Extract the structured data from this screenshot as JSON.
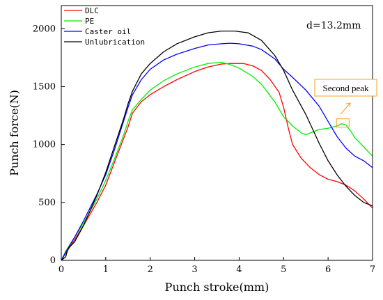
{
  "chart_data": {
    "type": "line",
    "xlabel": "Punch stroke(mm)",
    "ylabel": "Punch force(N)",
    "xlim": [
      0,
      7
    ],
    "ylim": [
      0,
      2200
    ],
    "xticks": [
      0,
      1,
      2,
      3,
      4,
      5,
      6,
      7
    ],
    "yticks": [
      0,
      500,
      1000,
      1500,
      2000
    ],
    "grid": false,
    "legend_position": "top-left",
    "annotation_diameter": "d=13.2mm",
    "annotation_peak": "Second peak",
    "series": [
      {
        "name": "DLC",
        "color": "#ff0000",
        "points": [
          [
            0,
            0
          ],
          [
            0.1,
            60
          ],
          [
            0.3,
            180
          ],
          [
            0.5,
            300
          ],
          [
            0.8,
            500
          ],
          [
            1.0,
            650
          ],
          [
            1.2,
            850
          ],
          [
            1.4,
            1050
          ],
          [
            1.5,
            1150
          ],
          [
            1.6,
            1270
          ],
          [
            1.7,
            1320
          ],
          [
            1.8,
            1370
          ],
          [
            2.0,
            1430
          ],
          [
            2.3,
            1500
          ],
          [
            2.6,
            1560
          ],
          [
            3.0,
            1630
          ],
          [
            3.3,
            1670
          ],
          [
            3.6,
            1695
          ],
          [
            3.8,
            1700
          ],
          [
            4.1,
            1700
          ],
          [
            4.3,
            1680
          ],
          [
            4.5,
            1640
          ],
          [
            4.7,
            1560
          ],
          [
            4.9,
            1450
          ],
          [
            5.0,
            1320
          ],
          [
            5.1,
            1150
          ],
          [
            5.2,
            1000
          ],
          [
            5.4,
            880
          ],
          [
            5.6,
            800
          ],
          [
            5.8,
            740
          ],
          [
            6.0,
            700
          ],
          [
            6.2,
            680
          ],
          [
            6.4,
            650
          ],
          [
            6.6,
            600
          ],
          [
            6.8,
            530
          ],
          [
            7.0,
            450
          ]
        ]
      },
      {
        "name": "PE",
        "color": "#00ee00",
        "points": [
          [
            0,
            0
          ],
          [
            0.1,
            80
          ],
          [
            0.3,
            200
          ],
          [
            0.5,
            320
          ],
          [
            0.8,
            530
          ],
          [
            1.0,
            690
          ],
          [
            1.2,
            880
          ],
          [
            1.4,
            1080
          ],
          [
            1.5,
            1200
          ],
          [
            1.6,
            1300
          ],
          [
            1.8,
            1390
          ],
          [
            2.0,
            1470
          ],
          [
            2.3,
            1550
          ],
          [
            2.6,
            1610
          ],
          [
            3.0,
            1670
          ],
          [
            3.3,
            1700
          ],
          [
            3.6,
            1710
          ],
          [
            3.8,
            1690
          ],
          [
            4.0,
            1660
          ],
          [
            4.3,
            1590
          ],
          [
            4.5,
            1520
          ],
          [
            4.8,
            1370
          ],
          [
            5.0,
            1240
          ],
          [
            5.2,
            1160
          ],
          [
            5.4,
            1100
          ],
          [
            5.5,
            1085
          ],
          [
            5.6,
            1100
          ],
          [
            5.8,
            1130
          ],
          [
            6.0,
            1140
          ],
          [
            6.2,
            1160
          ],
          [
            6.3,
            1180
          ],
          [
            6.4,
            1170
          ],
          [
            6.5,
            1120
          ],
          [
            6.6,
            1060
          ],
          [
            6.8,
            980
          ],
          [
            7.0,
            900
          ]
        ]
      },
      {
        "name": "Caster oil",
        "color": "#0000ff",
        "points": [
          [
            0,
            0
          ],
          [
            0.1,
            70
          ],
          [
            0.3,
            200
          ],
          [
            0.5,
            340
          ],
          [
            0.8,
            570
          ],
          [
            1.0,
            740
          ],
          [
            1.2,
            960
          ],
          [
            1.4,
            1200
          ],
          [
            1.5,
            1320
          ],
          [
            1.6,
            1430
          ],
          [
            1.8,
            1560
          ],
          [
            2.0,
            1650
          ],
          [
            2.3,
            1730
          ],
          [
            2.6,
            1780
          ],
          [
            3.0,
            1830
          ],
          [
            3.3,
            1860
          ],
          [
            3.6,
            1870
          ],
          [
            3.8,
            1875
          ],
          [
            4.0,
            1870
          ],
          [
            4.3,
            1850
          ],
          [
            4.5,
            1820
          ],
          [
            4.8,
            1740
          ],
          [
            5.0,
            1650
          ],
          [
            5.2,
            1580
          ],
          [
            5.5,
            1470
          ],
          [
            5.8,
            1330
          ],
          [
            6.0,
            1200
          ],
          [
            6.2,
            1070
          ],
          [
            6.4,
            970
          ],
          [
            6.6,
            900
          ],
          [
            6.8,
            860
          ],
          [
            7.0,
            800
          ]
        ]
      },
      {
        "name": "Unlubrication",
        "color": "#000000",
        "points": [
          [
            0,
            0
          ],
          [
            0.1,
            30
          ],
          [
            0.15,
            100
          ],
          [
            0.3,
            160
          ],
          [
            0.5,
            300
          ],
          [
            0.8,
            560
          ],
          [
            1.0,
            760
          ],
          [
            1.2,
            990
          ],
          [
            1.4,
            1220
          ],
          [
            1.5,
            1350
          ],
          [
            1.6,
            1460
          ],
          [
            1.8,
            1610
          ],
          [
            2.0,
            1700
          ],
          [
            2.3,
            1800
          ],
          [
            2.6,
            1870
          ],
          [
            3.0,
            1930
          ],
          [
            3.3,
            1965
          ],
          [
            3.6,
            1980
          ],
          [
            3.9,
            1980
          ],
          [
            4.2,
            1965
          ],
          [
            4.5,
            1900
          ],
          [
            4.8,
            1770
          ],
          [
            5.0,
            1640
          ],
          [
            5.2,
            1470
          ],
          [
            5.5,
            1260
          ],
          [
            5.8,
            1010
          ],
          [
            6.0,
            860
          ],
          [
            6.2,
            740
          ],
          [
            6.4,
            640
          ],
          [
            6.6,
            560
          ],
          [
            6.8,
            500
          ],
          [
            7.0,
            470
          ]
        ]
      }
    ]
  }
}
